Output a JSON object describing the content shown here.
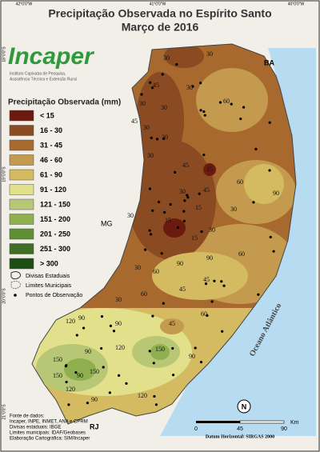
{
  "header": {
    "title": "Precipitação Observada no Espírito Santo",
    "subtitle": "Março de 2016"
  },
  "logo": {
    "name": "Incaper",
    "line1": "Instituto Capixaba de Pesquisa,",
    "line2": "Assistência Técnica e Extensão Rural"
  },
  "legend": {
    "title": "Precipitação Observada (mm)",
    "items": [
      {
        "label": "< 15",
        "color": "#6b1a10"
      },
      {
        "label": "16 - 30",
        "color": "#8a4a22"
      },
      {
        "label": "31 - 45",
        "color": "#a8692f"
      },
      {
        "label": "46 - 60",
        "color": "#c49a4e"
      },
      {
        "label": "61 - 90",
        "color": "#d4bb62"
      },
      {
        "label": "91 - 120",
        "color": "#e3e08c"
      },
      {
        "label": "121 - 150",
        "color": "#b8c775"
      },
      {
        "label": "151 - 200",
        "color": "#8fb04e"
      },
      {
        "label": "201 - 250",
        "color": "#5f8f35"
      },
      {
        "label": "251 - 300",
        "color": "#3f6f25"
      },
      {
        "label": "> 300",
        "color": "#1e4d14"
      }
    ],
    "symbols": [
      "Divisas Estaduais",
      "Limites Municipais",
      "Pontos de Observação"
    ]
  },
  "map": {
    "states": [
      "BA",
      "MG",
      "RJ"
    ],
    "ocean": "Oceano Atlântico",
    "lon": [
      "42°0'0\"W",
      "41°0'0\"W",
      "40°0'0\"W"
    ],
    "lat": [
      "18°0'0\"S",
      "19°0'0\"S",
      "20°0'0\"S",
      "21°0'0\"S"
    ],
    "contour_labels": [
      "30",
      "30",
      "45",
      "30",
      "60",
      "30",
      "30",
      "45",
      "30",
      "30",
      "30",
      "45",
      "15",
      "60",
      "45",
      "30",
      "15",
      "30",
      "15",
      "90",
      "30",
      "30",
      "15",
      "90",
      "60",
      "30",
      "60",
      "90",
      "45",
      "45",
      "30",
      "60",
      "90",
      "120",
      "90",
      "45",
      "60",
      "120",
      "150",
      "90",
      "150",
      "90",
      "150",
      "150",
      "90",
      "120",
      "90",
      "120"
    ]
  },
  "scale": {
    "ticks": [
      "0",
      "45",
      "90"
    ],
    "unit": "Km",
    "datum": "Datum Horizontal: SIRGAS 2000",
    "north": "N"
  },
  "sources": [
    "Fonte de dados:",
    "Incaper, INPE, INMET, ANA e CPRM",
    "Divisas estaduais: IBGE",
    "Limites municipais: IDAF/Geobases",
    "Elaboração Cartográfica: SIM/Incaper"
  ]
}
